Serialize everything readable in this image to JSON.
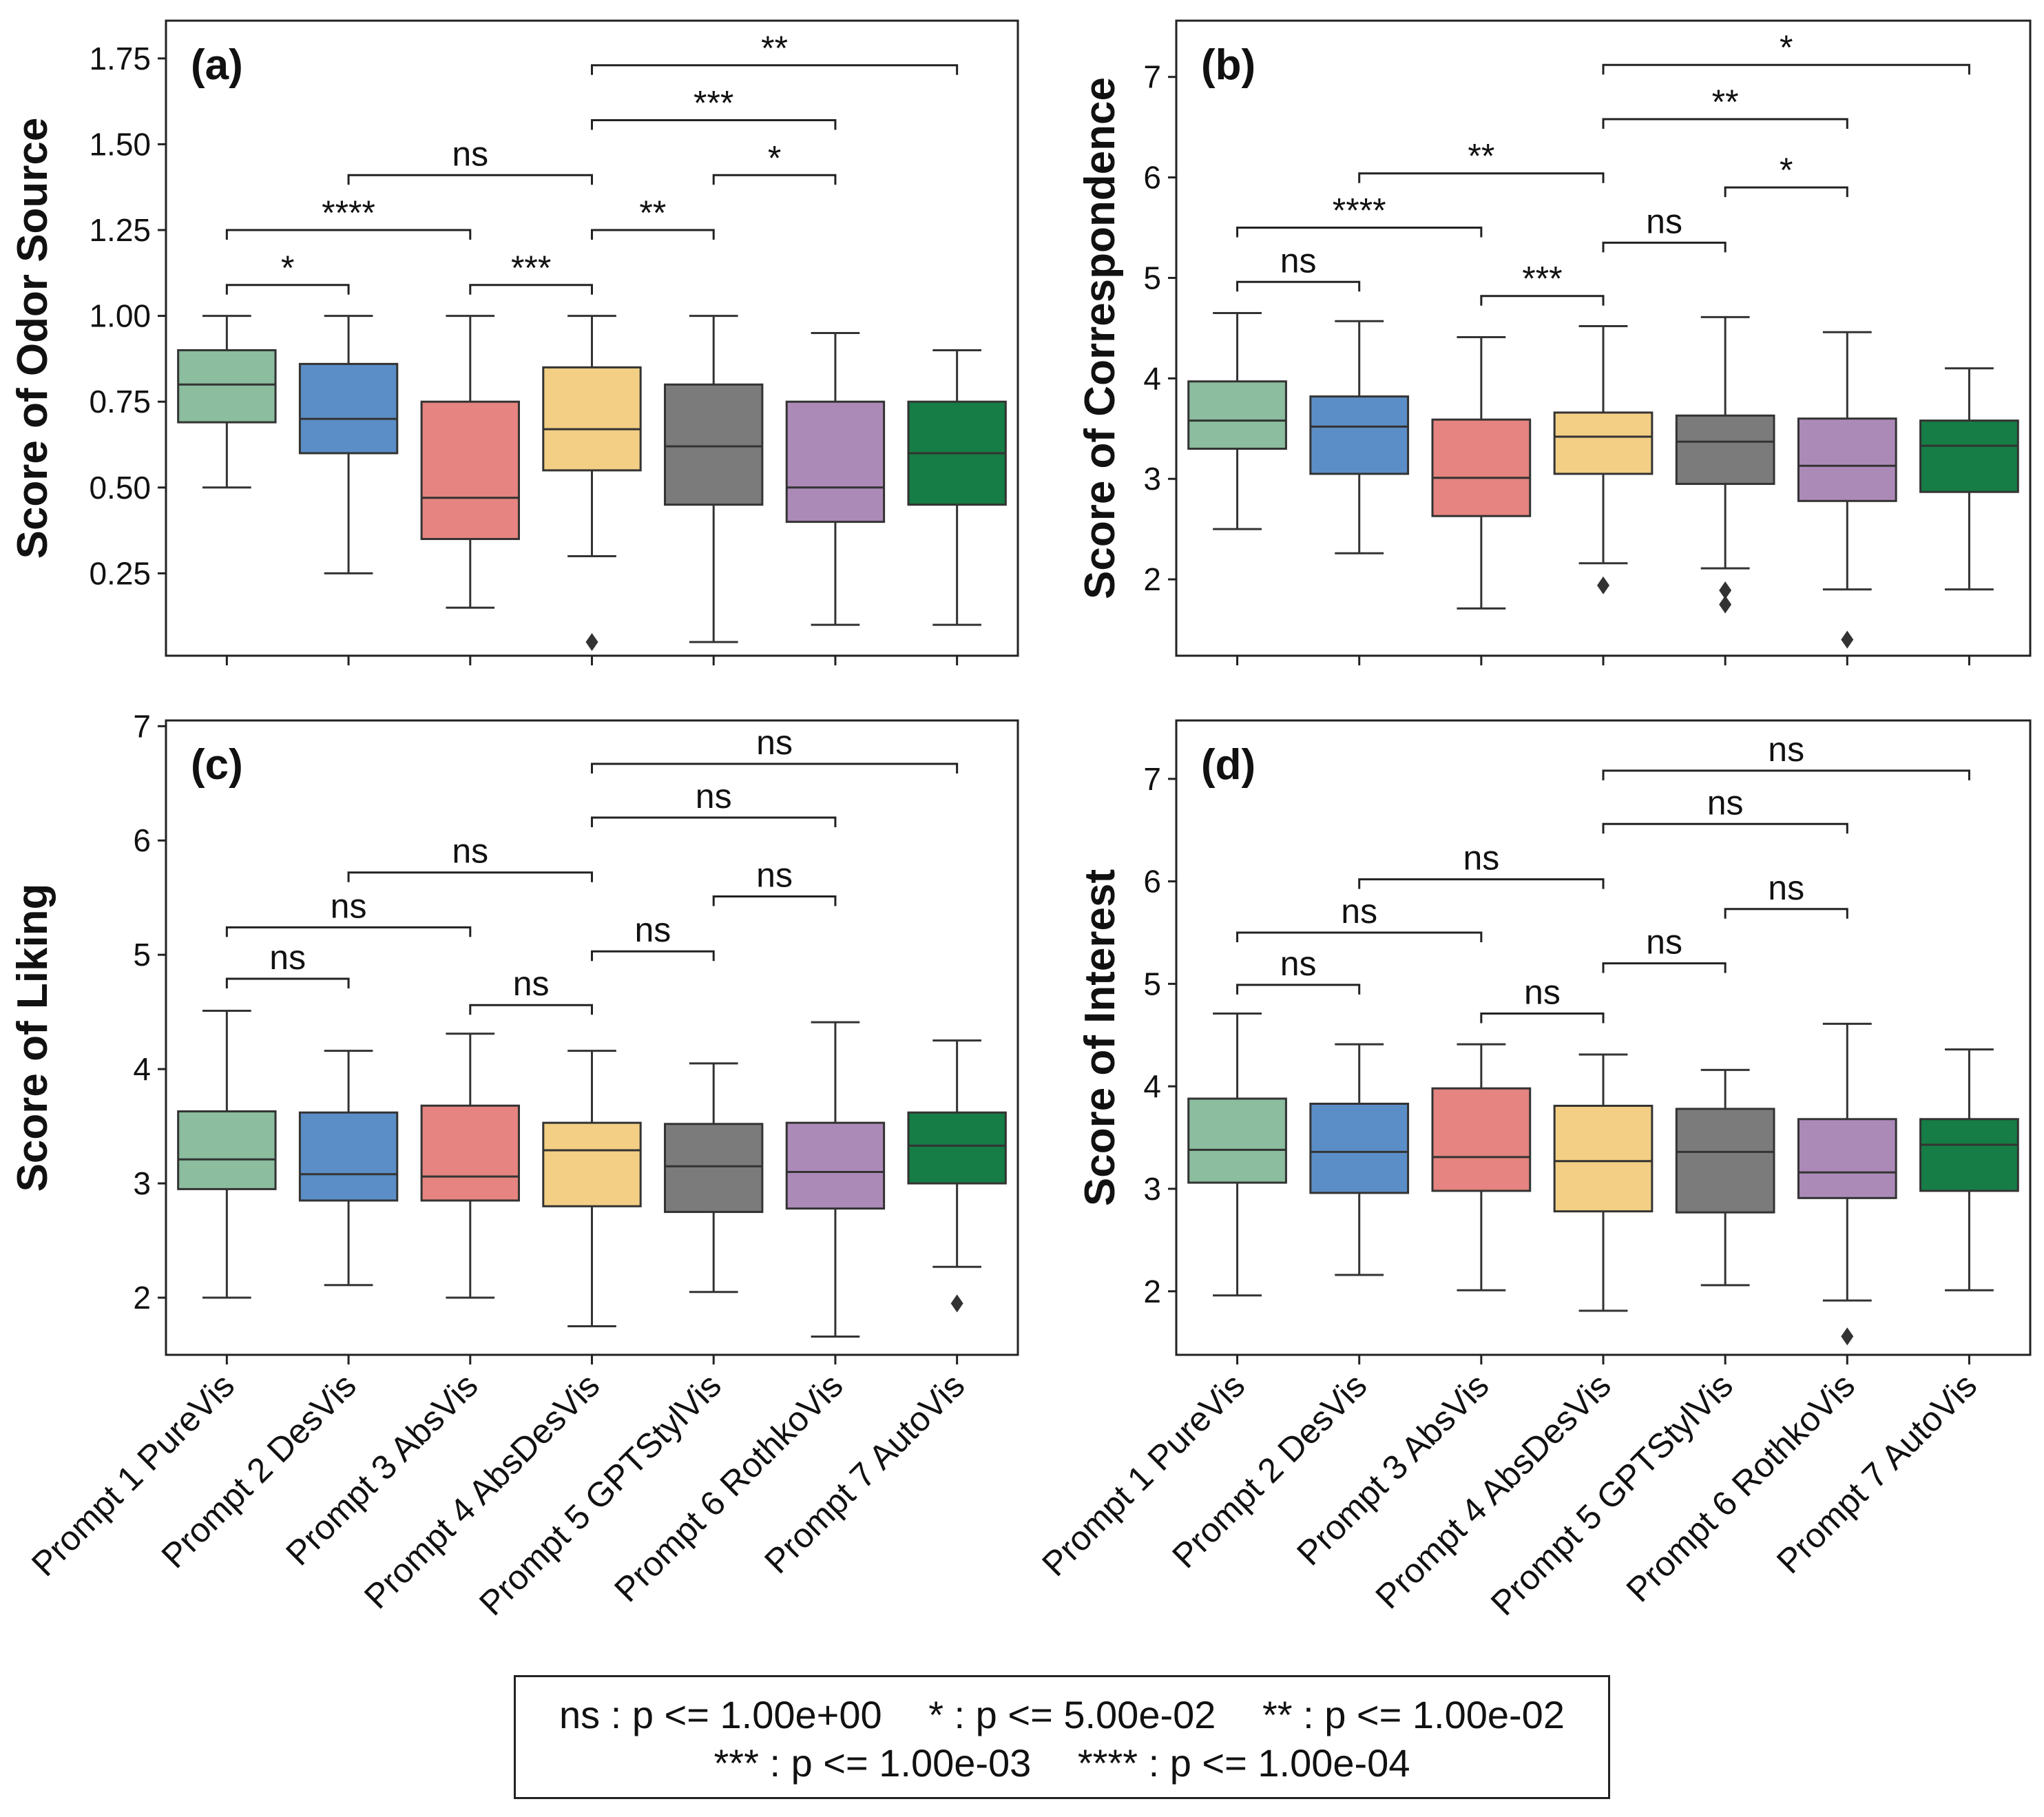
{
  "legend": {
    "row1": [
      "ns : p <= 1.00e+00",
      "* : p <= 5.00e-02",
      "** : p <= 1.00e-02"
    ],
    "row2": [
      "*** : p <= 1.00e-03",
      "**** : p <= 1.00e-04"
    ]
  },
  "chart_data": [
    {
      "type": "boxplot",
      "panel_label": "(a)",
      "ylabel": "Score of Odor Source",
      "categories": [
        "Prompt 1 PureVis",
        "Prompt 2 DesVis",
        "Prompt 3 AbsVis",
        "Prompt 4 AbsDesVis",
        "Prompt 5 GPTStylVis",
        "Prompt 6 RothkoVis",
        "Prompt 7 AutoVis"
      ],
      "show_category_labels": false,
      "ylim": [
        0.01,
        1.86
      ],
      "yticks": [
        0.25,
        0.5,
        0.75,
        1.0,
        1.25,
        1.5,
        1.75
      ],
      "ytick_labels": [
        "0.25",
        "0.50",
        "0.75",
        "1.00",
        "1.25",
        "1.50",
        "1.75"
      ],
      "colors": [
        "#8bbd9e",
        "#5b8ec6",
        "#e58480",
        "#f2cf85",
        "#7b7b7b",
        "#ac8ab8",
        "#157d45"
      ],
      "boxes": [
        {
          "whislo": 0.5,
          "q1": 0.69,
          "med": 0.8,
          "q3": 0.9,
          "whishi": 1.0,
          "fliers": []
        },
        {
          "whislo": 0.25,
          "q1": 0.6,
          "med": 0.7,
          "q3": 0.86,
          "whishi": 1.0,
          "fliers": []
        },
        {
          "whislo": 0.15,
          "q1": 0.35,
          "med": 0.47,
          "q3": 0.75,
          "whishi": 1.0,
          "fliers": []
        },
        {
          "whislo": 0.3,
          "q1": 0.55,
          "med": 0.67,
          "q3": 0.85,
          "whishi": 1.0,
          "fliers": [
            0.05
          ]
        },
        {
          "whislo": 0.05,
          "q1": 0.45,
          "med": 0.62,
          "q3": 0.8,
          "whishi": 1.0,
          "fliers": []
        },
        {
          "whislo": 0.1,
          "q1": 0.4,
          "med": 0.5,
          "q3": 0.75,
          "whishi": 0.95,
          "fliers": []
        },
        {
          "whislo": 0.1,
          "q1": 0.45,
          "med": 0.6,
          "q3": 0.75,
          "whishi": 0.9,
          "fliers": []
        }
      ],
      "annotations": [
        {
          "from": 0,
          "to": 1,
          "y": 1.09,
          "label": "*"
        },
        {
          "from": 2,
          "to": 3,
          "y": 1.09,
          "label": "***"
        },
        {
          "from": 0,
          "to": 2,
          "y": 1.25,
          "label": "****"
        },
        {
          "from": 3,
          "to": 4,
          "y": 1.25,
          "label": "**"
        },
        {
          "from": 1,
          "to": 3,
          "y": 1.41,
          "label": "ns"
        },
        {
          "from": 4,
          "to": 5,
          "y": 1.41,
          "label": "*"
        },
        {
          "from": 3,
          "to": 5,
          "y": 1.57,
          "label": "***"
        },
        {
          "from": 3,
          "to": 6,
          "y": 1.73,
          "label": "**"
        }
      ]
    },
    {
      "type": "boxplot",
      "panel_label": "(b)",
      "ylabel": "Score of Correspondence",
      "categories": [
        "Prompt 1 PureVis",
        "Prompt 2 DesVis",
        "Prompt 3 AbsVis",
        "Prompt 4 AbsDesVis",
        "Prompt 5 GPTStylVis",
        "Prompt 6 RothkoVis",
        "Prompt 7 AutoVis"
      ],
      "show_category_labels": false,
      "ylim": [
        1.24,
        7.56
      ],
      "yticks": [
        2,
        3,
        4,
        5,
        6,
        7
      ],
      "ytick_labels": [
        "2",
        "3",
        "4",
        "5",
        "6",
        "7"
      ],
      "colors": [
        "#8bbd9e",
        "#5b8ec6",
        "#e58480",
        "#f2cf85",
        "#7b7b7b",
        "#ac8ab8",
        "#157d45"
      ],
      "boxes": [
        {
          "whislo": 2.5,
          "q1": 3.3,
          "med": 3.58,
          "q3": 3.97,
          "whishi": 4.65,
          "fliers": []
        },
        {
          "whislo": 2.26,
          "q1": 3.05,
          "med": 3.52,
          "q3": 3.82,
          "whishi": 4.57,
          "fliers": []
        },
        {
          "whislo": 1.71,
          "q1": 2.63,
          "med": 3.01,
          "q3": 3.59,
          "whishi": 4.41,
          "fliers": []
        },
        {
          "whislo": 2.16,
          "q1": 3.05,
          "med": 3.42,
          "q3": 3.66,
          "whishi": 4.52,
          "fliers": [
            1.94
          ]
        },
        {
          "whislo": 2.11,
          "q1": 2.95,
          "med": 3.37,
          "q3": 3.63,
          "whishi": 4.61,
          "fliers": [
            1.89,
            1.75
          ]
        },
        {
          "whislo": 1.9,
          "q1": 2.78,
          "med": 3.13,
          "q3": 3.6,
          "whishi": 4.46,
          "fliers": [
            1.4
          ]
        },
        {
          "whislo": 1.9,
          "q1": 2.87,
          "med": 3.33,
          "q3": 3.58,
          "whishi": 4.1,
          "fliers": []
        }
      ],
      "annotations": [
        {
          "from": 0,
          "to": 1,
          "y": 4.96,
          "label": "ns"
        },
        {
          "from": 2,
          "to": 3,
          "y": 4.82,
          "label": "***"
        },
        {
          "from": 3,
          "to": 4,
          "y": 5.35,
          "label": "ns"
        },
        {
          "from": 0,
          "to": 2,
          "y": 5.5,
          "label": "****"
        },
        {
          "from": 4,
          "to": 5,
          "y": 5.9,
          "label": "*"
        },
        {
          "from": 1,
          "to": 3,
          "y": 6.04,
          "label": "**"
        },
        {
          "from": 3,
          "to": 5,
          "y": 6.58,
          "label": "**"
        },
        {
          "from": 3,
          "to": 6,
          "y": 7.12,
          "label": "*"
        }
      ]
    },
    {
      "type": "boxplot",
      "panel_label": "(c)",
      "ylabel": "Score of Liking",
      "categories": [
        "Prompt 1 PureVis",
        "Prompt 2 DesVis",
        "Prompt 3 AbsVis",
        "Prompt 4 AbsDesVis",
        "Prompt 5 GPTStylVis",
        "Prompt 6 RothkoVis",
        "Prompt 7 AutoVis"
      ],
      "show_category_labels": true,
      "ylim": [
        1.5,
        7.05
      ],
      "yticks": [
        2,
        3,
        4,
        5,
        6,
        7
      ],
      "ytick_labels": [
        "2",
        "3",
        "4",
        "5",
        "6",
        "7"
      ],
      "colors": [
        "#8bbd9e",
        "#5b8ec6",
        "#e58480",
        "#f2cf85",
        "#7b7b7b",
        "#ac8ab8",
        "#157d45"
      ],
      "boxes": [
        {
          "whislo": 2.0,
          "q1": 2.95,
          "med": 3.21,
          "q3": 3.63,
          "whishi": 4.51,
          "fliers": []
        },
        {
          "whislo": 2.11,
          "q1": 2.85,
          "med": 3.08,
          "q3": 3.62,
          "whishi": 4.16,
          "fliers": []
        },
        {
          "whislo": 2.0,
          "q1": 2.85,
          "med": 3.06,
          "q3": 3.68,
          "whishi": 4.31,
          "fliers": []
        },
        {
          "whislo": 1.75,
          "q1": 2.8,
          "med": 3.29,
          "q3": 3.53,
          "whishi": 4.16,
          "fliers": []
        },
        {
          "whislo": 2.05,
          "q1": 2.75,
          "med": 3.15,
          "q3": 3.52,
          "whishi": 4.05,
          "fliers": []
        },
        {
          "whislo": 1.66,
          "q1": 2.78,
          "med": 3.1,
          "q3": 3.53,
          "whishi": 4.41,
          "fliers": []
        },
        {
          "whislo": 2.27,
          "q1": 3.0,
          "med": 3.33,
          "q3": 3.62,
          "whishi": 4.25,
          "fliers": [
            1.95
          ]
        }
      ],
      "annotations": [
        {
          "from": 0,
          "to": 1,
          "y": 4.79,
          "label": "ns"
        },
        {
          "from": 2,
          "to": 3,
          "y": 4.56,
          "label": "ns"
        },
        {
          "from": 3,
          "to": 4,
          "y": 5.03,
          "label": "ns"
        },
        {
          "from": 0,
          "to": 2,
          "y": 5.24,
          "label": "ns"
        },
        {
          "from": 4,
          "to": 5,
          "y": 5.51,
          "label": "ns"
        },
        {
          "from": 1,
          "to": 3,
          "y": 5.72,
          "label": "ns"
        },
        {
          "from": 3,
          "to": 5,
          "y": 6.2,
          "label": "ns"
        },
        {
          "from": 3,
          "to": 6,
          "y": 6.67,
          "label": "ns"
        }
      ]
    },
    {
      "type": "boxplot",
      "panel_label": "(d)",
      "ylabel": "Score of Interest",
      "categories": [
        "Prompt 1 PureVis",
        "Prompt 2 DesVis",
        "Prompt 3 AbsVis",
        "Prompt 4 AbsDesVis",
        "Prompt 5 GPTStylVis",
        "Prompt 6 RothkoVis",
        "Prompt 7 AutoVis"
      ],
      "show_category_labels": true,
      "ylim": [
        1.38,
        7.57
      ],
      "yticks": [
        2,
        3,
        4,
        5,
        6,
        7
      ],
      "ytick_labels": [
        "2",
        "3",
        "4",
        "5",
        "6",
        "7"
      ],
      "colors": [
        "#8bbd9e",
        "#5b8ec6",
        "#e58480",
        "#f2cf85",
        "#7b7b7b",
        "#ac8ab8",
        "#157d45"
      ],
      "boxes": [
        {
          "whislo": 1.96,
          "q1": 3.06,
          "med": 3.38,
          "q3": 3.88,
          "whishi": 4.71,
          "fliers": []
        },
        {
          "whislo": 2.16,
          "q1": 2.96,
          "med": 3.36,
          "q3": 3.83,
          "whishi": 4.41,
          "fliers": []
        },
        {
          "whislo": 2.01,
          "q1": 2.98,
          "med": 3.31,
          "q3": 3.98,
          "whishi": 4.41,
          "fliers": []
        },
        {
          "whislo": 1.81,
          "q1": 2.78,
          "med": 3.27,
          "q3": 3.81,
          "whishi": 4.31,
          "fliers": []
        },
        {
          "whislo": 2.06,
          "q1": 2.77,
          "med": 3.36,
          "q3": 3.78,
          "whishi": 4.16,
          "fliers": []
        },
        {
          "whislo": 1.91,
          "q1": 2.91,
          "med": 3.16,
          "q3": 3.68,
          "whishi": 4.61,
          "fliers": [
            1.56
          ]
        },
        {
          "whislo": 2.01,
          "q1": 2.98,
          "med": 3.43,
          "q3": 3.68,
          "whishi": 4.36,
          "fliers": []
        }
      ],
      "annotations": [
        {
          "from": 0,
          "to": 1,
          "y": 4.99,
          "label": "ns"
        },
        {
          "from": 2,
          "to": 3,
          "y": 4.71,
          "label": "ns"
        },
        {
          "from": 3,
          "to": 4,
          "y": 5.2,
          "label": "ns"
        },
        {
          "from": 0,
          "to": 2,
          "y": 5.5,
          "label": "ns"
        },
        {
          "from": 4,
          "to": 5,
          "y": 5.73,
          "label": "ns"
        },
        {
          "from": 1,
          "to": 3,
          "y": 6.02,
          "label": "ns"
        },
        {
          "from": 3,
          "to": 5,
          "y": 6.56,
          "label": "ns"
        },
        {
          "from": 3,
          "to": 6,
          "y": 7.08,
          "label": "ns"
        }
      ]
    }
  ]
}
